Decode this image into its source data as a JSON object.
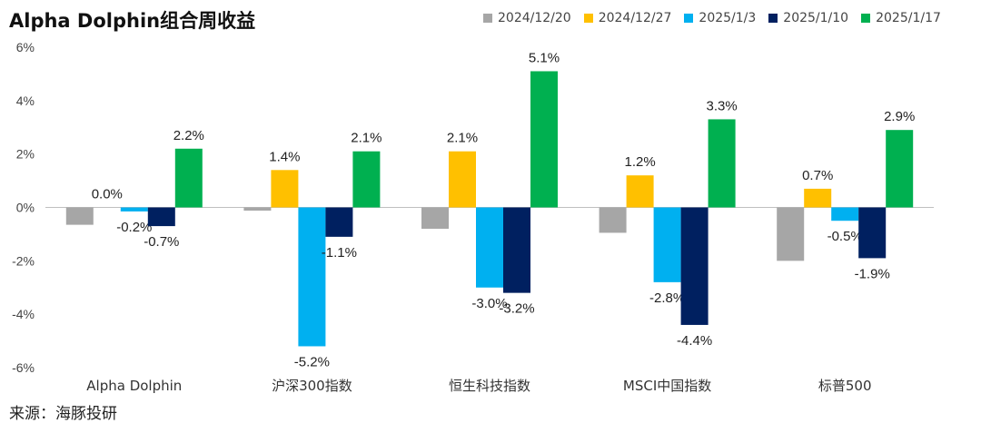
{
  "title": "Alpha Dolphin组合周收益",
  "source": "来源：海豚投研",
  "colors": {
    "2024/12/20": "#a6a6a6",
    "2024/12/27": "#ffc000",
    "2025/1/3": "#00b0f0",
    "2025/1/10": "#002060",
    "2025/1/17": "#00b050"
  },
  "chart_data": {
    "type": "bar",
    "categories": [
      "Alpha Dolphin",
      "沪深300指数",
      "恒生科技指数",
      "MSCI中国指数",
      "标普500"
    ],
    "series": [
      {
        "name": "2024/12/20",
        "values": [
          -0.65,
          -0.12,
          -0.8,
          -0.95,
          -2.0
        ],
        "labels": [
          null,
          null,
          null,
          null,
          null
        ]
      },
      {
        "name": "2024/12/27",
        "values": [
          0.0,
          1.4,
          2.1,
          1.2,
          0.7
        ],
        "labels": [
          "0.0%",
          "1.4%",
          "2.1%",
          "1.2%",
          "0.7%"
        ]
      },
      {
        "name": "2025/1/3",
        "values": [
          -0.15,
          -5.2,
          -3.0,
          -2.8,
          -0.5
        ],
        "labels": [
          "-0.2%",
          "-5.2%",
          "-3.0%",
          "-2.8%",
          "-0.5%"
        ]
      },
      {
        "name": "2025/1/10",
        "values": [
          -0.7,
          -1.1,
          -3.2,
          -4.4,
          -1.9
        ],
        "labels": [
          "-0.7%",
          "-1.1%",
          "-3.2%",
          "-4.4%",
          "-1.9%"
        ]
      },
      {
        "name": "2025/1/17",
        "values": [
          2.2,
          2.1,
          5.1,
          3.3,
          2.9
        ],
        "labels": [
          "2.2%",
          "2.1%",
          "5.1%",
          "3.3%",
          "2.9%"
        ]
      }
    ],
    "ylim": [
      -6,
      6
    ],
    "yticks": [
      "-6%",
      "-4%",
      "-2%",
      "0%",
      "2%",
      "4%",
      "6%"
    ],
    "ytick_values": [
      -6,
      -4,
      -2,
      0,
      2,
      4,
      6
    ],
    "legend_position": "top-right",
    "grid": false
  }
}
